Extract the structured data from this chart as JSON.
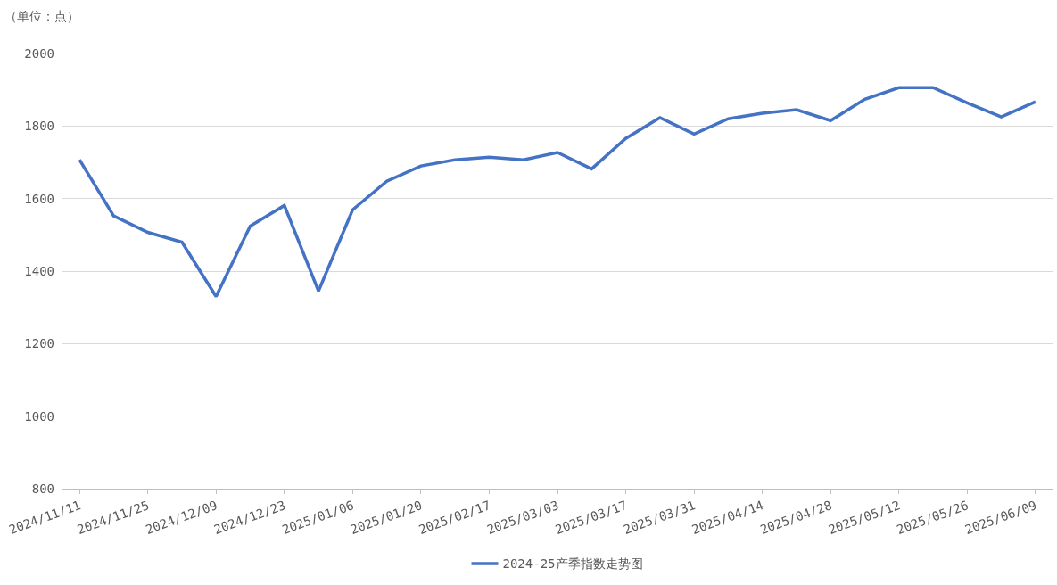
{
  "chart_data": {
    "type": "line",
    "ylabel": "（单位：点）",
    "categories": [
      "2024/11/11",
      null,
      "2024/11/25",
      null,
      "2024/12/09",
      null,
      "2024/12/23",
      null,
      "2025/01/06",
      null,
      "2025/01/20",
      null,
      "2025/02/17",
      null,
      "2025/03/03",
      null,
      "2025/03/17",
      null,
      "2025/03/31",
      null,
      "2025/04/14",
      null,
      "2025/04/28",
      null,
      "2025/05/12",
      null,
      "2025/05/26",
      null,
      "2025/06/09"
    ],
    "series": [
      {
        "name": "2024-25产季指数走势图",
        "color": "#4472c4",
        "values": [
          1707,
          1552,
          1507,
          1480,
          1330,
          1524,
          1581,
          1345,
          1569,
          1648,
          1690,
          1707,
          1714,
          1707,
          1727,
          1682,
          1766,
          1823,
          1778,
          1820,
          1835,
          1845,
          1815,
          1874,
          1906,
          1906,
          1864,
          1825,
          1867
        ]
      }
    ],
    "ylim": [
      800,
      2000
    ],
    "yticks": [
      800,
      1000,
      1200,
      1400,
      1600,
      1800,
      2000
    ],
    "grid": "y",
    "legend": "bottom",
    "marker": "none",
    "line_style": "solid"
  }
}
